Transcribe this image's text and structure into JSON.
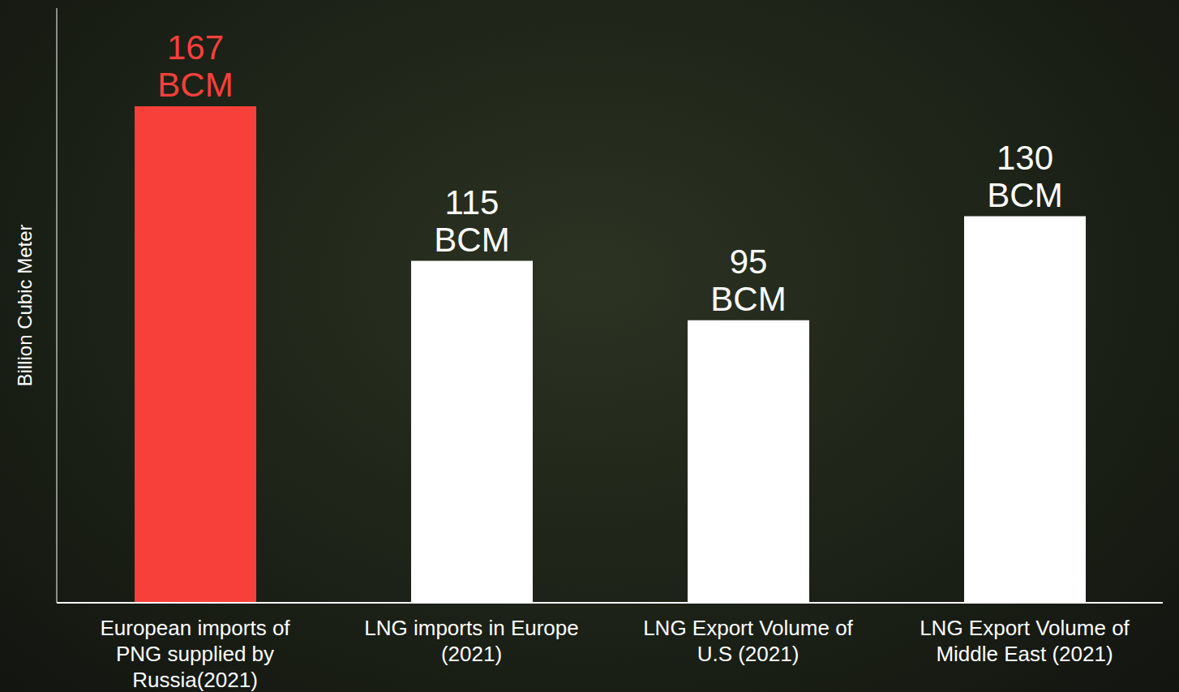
{
  "chart_data": {
    "type": "bar",
    "categories": [
      "European imports of PNG supplied by Russia(2021)",
      "LNG imports in Europe (2021)",
      "LNG Export Volume of U.S (2021)",
      "LNG Export Volume of Middle East (2021)"
    ],
    "values": [
      167,
      115,
      95,
      130
    ],
    "value_labels": [
      "167 BCM",
      "115 BCM",
      "95 BCM",
      "130 BCM"
    ],
    "colors": [
      "#f8403a",
      "#ffffff",
      "#ffffff",
      "#ffffff"
    ],
    "ylabel": "Billion Cubic Meter",
    "ylim": [
      0,
      200
    ],
    "data_labels": true,
    "tick_labels": "x"
  }
}
